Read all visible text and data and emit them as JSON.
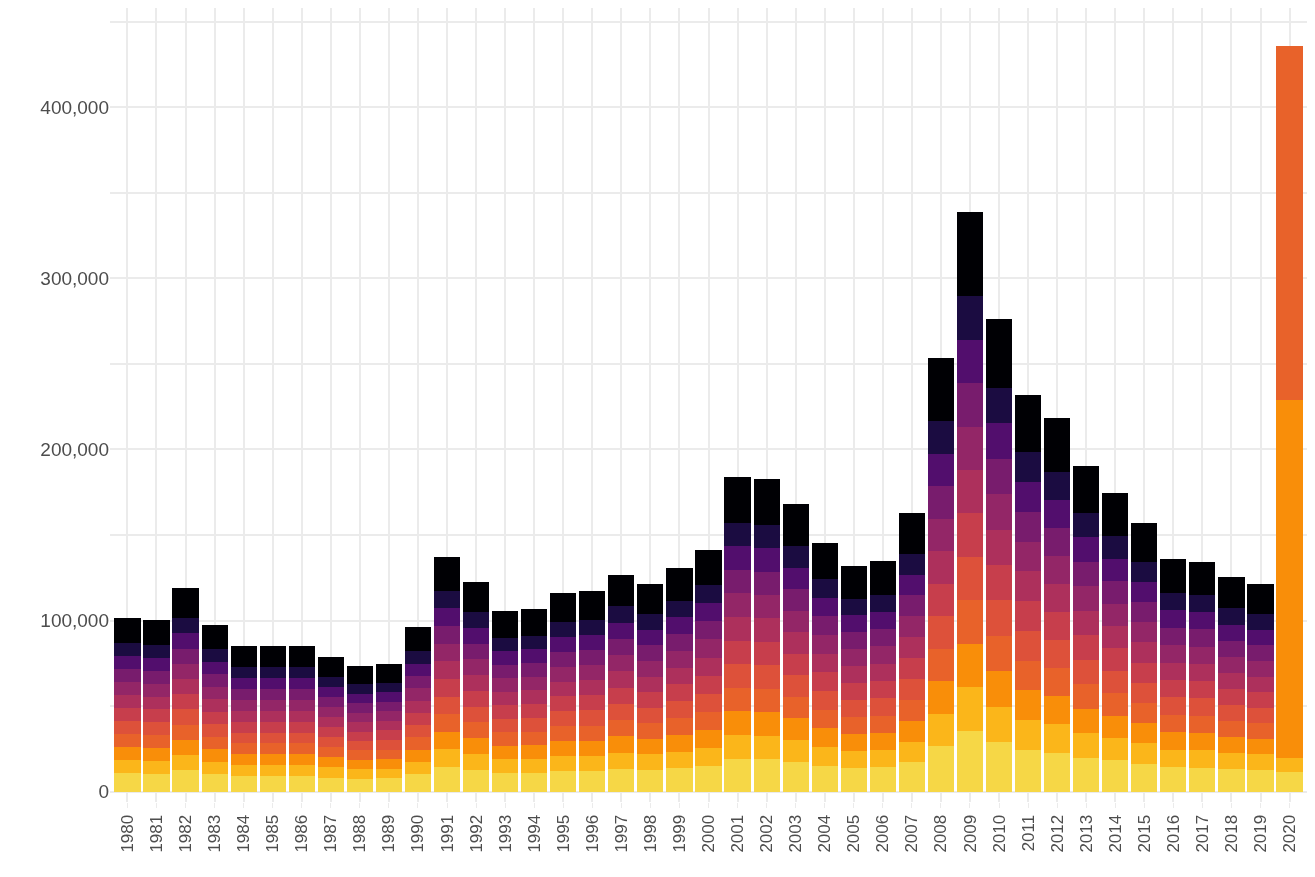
{
  "chart_data": {
    "type": "bar",
    "stacked": true,
    "categories": [
      "1980",
      "1981",
      "1982",
      "1983",
      "1984",
      "1985",
      "1986",
      "1987",
      "1988",
      "1989",
      "1990",
      "1991",
      "1992",
      "1993",
      "1994",
      "1995",
      "1996",
      "1997",
      "1998",
      "1999",
      "2000",
      "2001",
      "2002",
      "2003",
      "2004",
      "2005",
      "2006",
      "2007",
      "2008",
      "2009",
      "2010",
      "2011",
      "2012",
      "2013",
      "2014",
      "2015",
      "2016",
      "2017",
      "2018",
      "2019",
      "2020"
    ],
    "ylim": [
      -6000,
      458000
    ],
    "yticks": [
      0,
      {
        "value": 50000,
        "label": null
      },
      {
        "value": 100000,
        "label": "100,000"
      },
      {
        "value": 150000,
        "label": null
      },
      {
        "value": 200000,
        "label": "200,000"
      },
      {
        "value": 250000,
        "label": null
      },
      {
        "value": 300000,
        "label": "300,000"
      },
      {
        "value": 350000,
        "label": null
      },
      {
        "value": 400000,
        "label": "400,000"
      },
      {
        "value": 450000,
        "label": null
      }
    ],
    "grid": true,
    "series": [
      {
        "color": "#f6d746",
        "values": [
          10700,
          10600,
          12500,
          10200,
          9000,
          9000,
          9000,
          8300,
          7700,
          7800,
          10100,
          14400,
          12900,
          11100,
          11200,
          12200,
          12300,
          13300,
          12700,
          13700,
          14800,
          19300,
          19100,
          17600,
          15300,
          13900,
          14200,
          17100,
          26600,
          35600,
          29000,
          24400,
          22900,
          20000,
          18300,
          16500,
          14300,
          14100,
          13100,
          12700,
          11500
        ]
      },
      {
        "color": "#fbb61a",
        "values": [
          7600,
          7500,
          8900,
          7300,
          6400,
          6400,
          6400,
          5900,
          5500,
          5600,
          7200,
          10300,
          9200,
          7900,
          8000,
          8700,
          8800,
          9500,
          9100,
          9800,
          10600,
          13800,
          13700,
          12600,
          10900,
          9900,
          10100,
          12200,
          19000,
          25400,
          20700,
          17400,
          16400,
          14300,
          13100,
          11800,
          10200,
          10100,
          9400,
          9100,
          8000
        ]
      },
      {
        "color": "#f98e09",
        "values": [
          7600,
          7500,
          8900,
          7300,
          6400,
          6400,
          6400,
          5900,
          5500,
          5600,
          7200,
          10300,
          9200,
          7900,
          8000,
          8700,
          8800,
          9500,
          9100,
          9800,
          10600,
          13800,
          13700,
          12600,
          10900,
          9900,
          10100,
          12200,
          19000,
          25400,
          20700,
          17400,
          16400,
          14300,
          13100,
          11800,
          10200,
          10100,
          9400,
          9100,
          209500
        ]
      },
      {
        "color": "#e8622a",
        "values": [
          7600,
          7500,
          8900,
          7300,
          6400,
          6400,
          6400,
          5900,
          5500,
          5600,
          7200,
          10300,
          9200,
          7900,
          8000,
          8700,
          8800,
          9500,
          9100,
          9800,
          10600,
          13800,
          13700,
          12600,
          10900,
          9900,
          10100,
          12200,
          19000,
          25400,
          20700,
          17400,
          16400,
          14300,
          13100,
          11800,
          10200,
          10100,
          9400,
          9100,
          207000
        ]
      },
      {
        "color": "#dd513a",
        "values": [
          7600,
          7500,
          8900,
          7300,
          6400,
          6400,
          6400,
          5900,
          5500,
          5600,
          7200,
          10300,
          9200,
          7900,
          8000,
          8700,
          8800,
          9500,
          9100,
          9800,
          10600,
          13800,
          13700,
          12600,
          10900,
          9900,
          10100,
          12200,
          19000,
          25400,
          20700,
          17400,
          16400,
          14300,
          13100,
          11800,
          10200,
          10100,
          9400,
          9100,
          null
        ]
      },
      {
        "color": "#c73e4c",
        "values": [
          7600,
          7500,
          8900,
          7300,
          6400,
          6400,
          6400,
          5900,
          5500,
          5600,
          7200,
          10300,
          9200,
          7900,
          8000,
          8700,
          8800,
          9500,
          9100,
          9800,
          10600,
          13800,
          13700,
          12600,
          10900,
          9900,
          10100,
          12200,
          19000,
          25400,
          20700,
          17400,
          16400,
          14300,
          13100,
          11800,
          10200,
          10100,
          9400,
          9100,
          null
        ]
      },
      {
        "color": "#ad305c",
        "values": [
          7600,
          7500,
          8900,
          7300,
          6400,
          6400,
          6400,
          5900,
          5500,
          5600,
          7200,
          10300,
          9200,
          7900,
          8000,
          8700,
          8800,
          9500,
          9100,
          9800,
          10600,
          13800,
          13700,
          12600,
          10900,
          9900,
          10100,
          12200,
          19000,
          25400,
          20700,
          17400,
          16400,
          14300,
          13100,
          11800,
          10200,
          10100,
          9400,
          9100,
          null
        ]
      },
      {
        "color": "#932667",
        "values": [
          7600,
          7500,
          8900,
          7300,
          6400,
          6400,
          6400,
          5900,
          5500,
          5600,
          7200,
          10300,
          9200,
          7900,
          8000,
          8700,
          8800,
          9500,
          9100,
          9800,
          10600,
          13800,
          13700,
          12600,
          10900,
          9900,
          10100,
          12200,
          19000,
          25400,
          20700,
          17400,
          16400,
          14300,
          13100,
          11800,
          10200,
          10100,
          9400,
          9100,
          null
        ]
      },
      {
        "color": "#781c6d",
        "values": [
          7600,
          7500,
          8900,
          7300,
          6400,
          6400,
          6400,
          5900,
          5500,
          5600,
          7200,
          10300,
          9200,
          7900,
          8000,
          8700,
          8800,
          9500,
          9100,
          9800,
          10600,
          13800,
          13700,
          12600,
          10900,
          9900,
          10100,
          12200,
          19000,
          25400,
          20700,
          17400,
          16400,
          14300,
          13100,
          11800,
          10200,
          10100,
          9400,
          9100,
          null
        ]
      },
      {
        "color": "#520e6d",
        "values": [
          7600,
          7500,
          8900,
          7300,
          6400,
          6400,
          6400,
          5900,
          5500,
          5600,
          7200,
          10300,
          9200,
          7900,
          8000,
          8700,
          8800,
          9500,
          9100,
          9800,
          10600,
          13800,
          13700,
          12600,
          10900,
          9900,
          10100,
          12200,
          19000,
          25400,
          20700,
          17400,
          16400,
          14300,
          13100,
          11800,
          10200,
          10100,
          9400,
          9100,
          null
        ]
      },
      {
        "color": "#1b0c41",
        "values": [
          7600,
          7500,
          8900,
          7300,
          6400,
          6400,
          6400,
          5900,
          5500,
          5600,
          7200,
          10300,
          9200,
          7900,
          8000,
          8700,
          8800,
          9500,
          9100,
          9800,
          10600,
          13800,
          13700,
          12600,
          10900,
          9900,
          10100,
          12200,
          19000,
          25400,
          20700,
          17400,
          16400,
          14300,
          13100,
          11800,
          10200,
          10100,
          9400,
          9100,
          null
        ]
      },
      {
        "color": "#000004",
        "values": [
          14800,
          14600,
          17300,
          14100,
          12400,
          12400,
          12400,
          11500,
          10600,
          10800,
          14000,
          19800,
          17800,
          15300,
          15500,
          16800,
          17000,
          18400,
          17500,
          18900,
          20400,
          26700,
          26400,
          24400,
          21100,
          19200,
          19600,
          23600,
          36700,
          49200,
          40000,
          33700,
          31600,
          27500,
          25200,
          22800,
          19700,
          19400,
          18100,
          17500,
          null
        ]
      }
    ]
  }
}
